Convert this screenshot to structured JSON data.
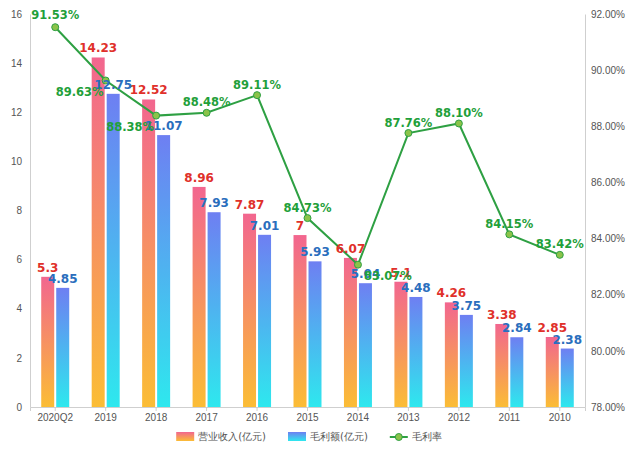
{
  "chart_data": {
    "type": "bar",
    "categories": [
      "2020Q2",
      "2019",
      "2018",
      "2017",
      "2016",
      "2015",
      "2014",
      "2013",
      "2012",
      "2011",
      "2010"
    ],
    "series": [
      {
        "name": "营业收入(亿元)",
        "type": "bar",
        "color": "#f2668f",
        "values": [
          5.3,
          14.23,
          12.52,
          8.96,
          7.87,
          7,
          6.07,
          5.1,
          4.26,
          3.38,
          2.85
        ]
      },
      {
        "name": "毛利额(亿元)",
        "type": "bar",
        "color": "#6e7ff2",
        "values": [
          4.85,
          12.75,
          11.07,
          7.93,
          7.01,
          5.93,
          5.04,
          4.48,
          3.75,
          2.84,
          2.38
        ]
      },
      {
        "name": "毛利率",
        "type": "line",
        "axis": "y2",
        "color": "#2ea043",
        "marker": "circle",
        "values": [
          91.53,
          89.63,
          88.38,
          88.48,
          89.11,
          84.73,
          83.07,
          87.76,
          88.1,
          84.15,
          83.42
        ],
        "value_labels": [
          "91.53%",
          "89.63%",
          "88.38%",
          "88.48%",
          "89.11%",
          "84.73%",
          "83.07%",
          "87.76%",
          "88.10%",
          "84.15%",
          "83.42%"
        ]
      }
    ],
    "ylim": [
      0,
      16
    ],
    "yticks": [
      0,
      2,
      4,
      6,
      8,
      10,
      12,
      14,
      16
    ],
    "y2lim": [
      78,
      92
    ],
    "y2ticks": [
      {
        "value": 78,
        "label": "78.00%"
      },
      {
        "value": 80,
        "label": "80.00%"
      },
      {
        "value": 82,
        "label": "82.00%"
      },
      {
        "value": 84,
        "label": "84.00%"
      },
      {
        "value": 86,
        "label": "86.00%"
      },
      {
        "value": 88,
        "label": "88.00%"
      },
      {
        "value": 90,
        "label": "90.00%"
      },
      {
        "value": 92,
        "label": "92.00%"
      }
    ],
    "data_labels": true,
    "legend": "bottom",
    "grid": false
  }
}
